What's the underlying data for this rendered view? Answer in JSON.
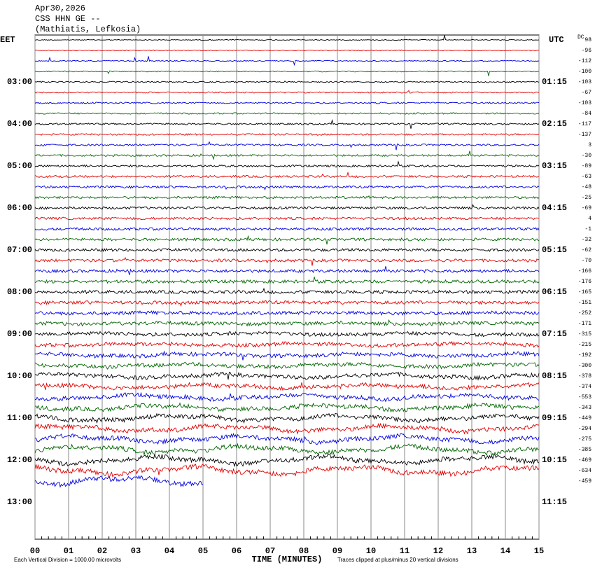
{
  "header": {
    "date": "Apr30,2026",
    "station": "CSS HHN GE --",
    "location": "(Mathiatis, Lefkosia)"
  },
  "left_labels": {
    "header": "EET",
    "times": [
      "03:00",
      "04:00",
      "05:00",
      "06:00",
      "07:00",
      "08:00",
      "09:00",
      "10:00",
      "11:00",
      "12:00",
      "13:00"
    ]
  },
  "right_labels": {
    "header": "UTC",
    "times": [
      "01:15",
      "02:15",
      "03:15",
      "04:15",
      "05:15",
      "06:15",
      "07:15",
      "08:15",
      "09:15",
      "10:15",
      "11:15"
    ]
  },
  "dc": {
    "header": "DC",
    "values": [
      "98",
      "-96",
      "-112",
      "-100",
      "-103",
      "-67",
      "-103",
      "-84",
      "-117",
      "-137",
      "3",
      "-30",
      "-89",
      "-63",
      "-48",
      "-25",
      "-69",
      "4",
      "-1",
      "-32",
      "-62",
      "-70",
      "-166",
      "-176",
      "-165",
      "-151",
      "-252",
      "-171",
      "-315",
      "-215",
      "-192",
      "-300",
      "-378",
      "-374",
      "-553",
      "-343",
      "-449",
      "-294",
      "-275",
      "-385",
      "-469",
      "-634",
      "-459"
    ]
  },
  "x_axis": {
    "ticks": [
      "00",
      "01",
      "02",
      "03",
      "04",
      "05",
      "06",
      "07",
      "08",
      "09",
      "10",
      "11",
      "12",
      "13",
      "14",
      "15"
    ],
    "label": "TIME (MINUTES)"
  },
  "footer": {
    "scale": "Each Vertical Division = 1000.00 microvolts",
    "clip": "Traces clipped at plus/minus 20 vertical divisions"
  },
  "trace_colors": [
    "#000000",
    "#e00000",
    "#0000e0",
    "#006400"
  ]
}
